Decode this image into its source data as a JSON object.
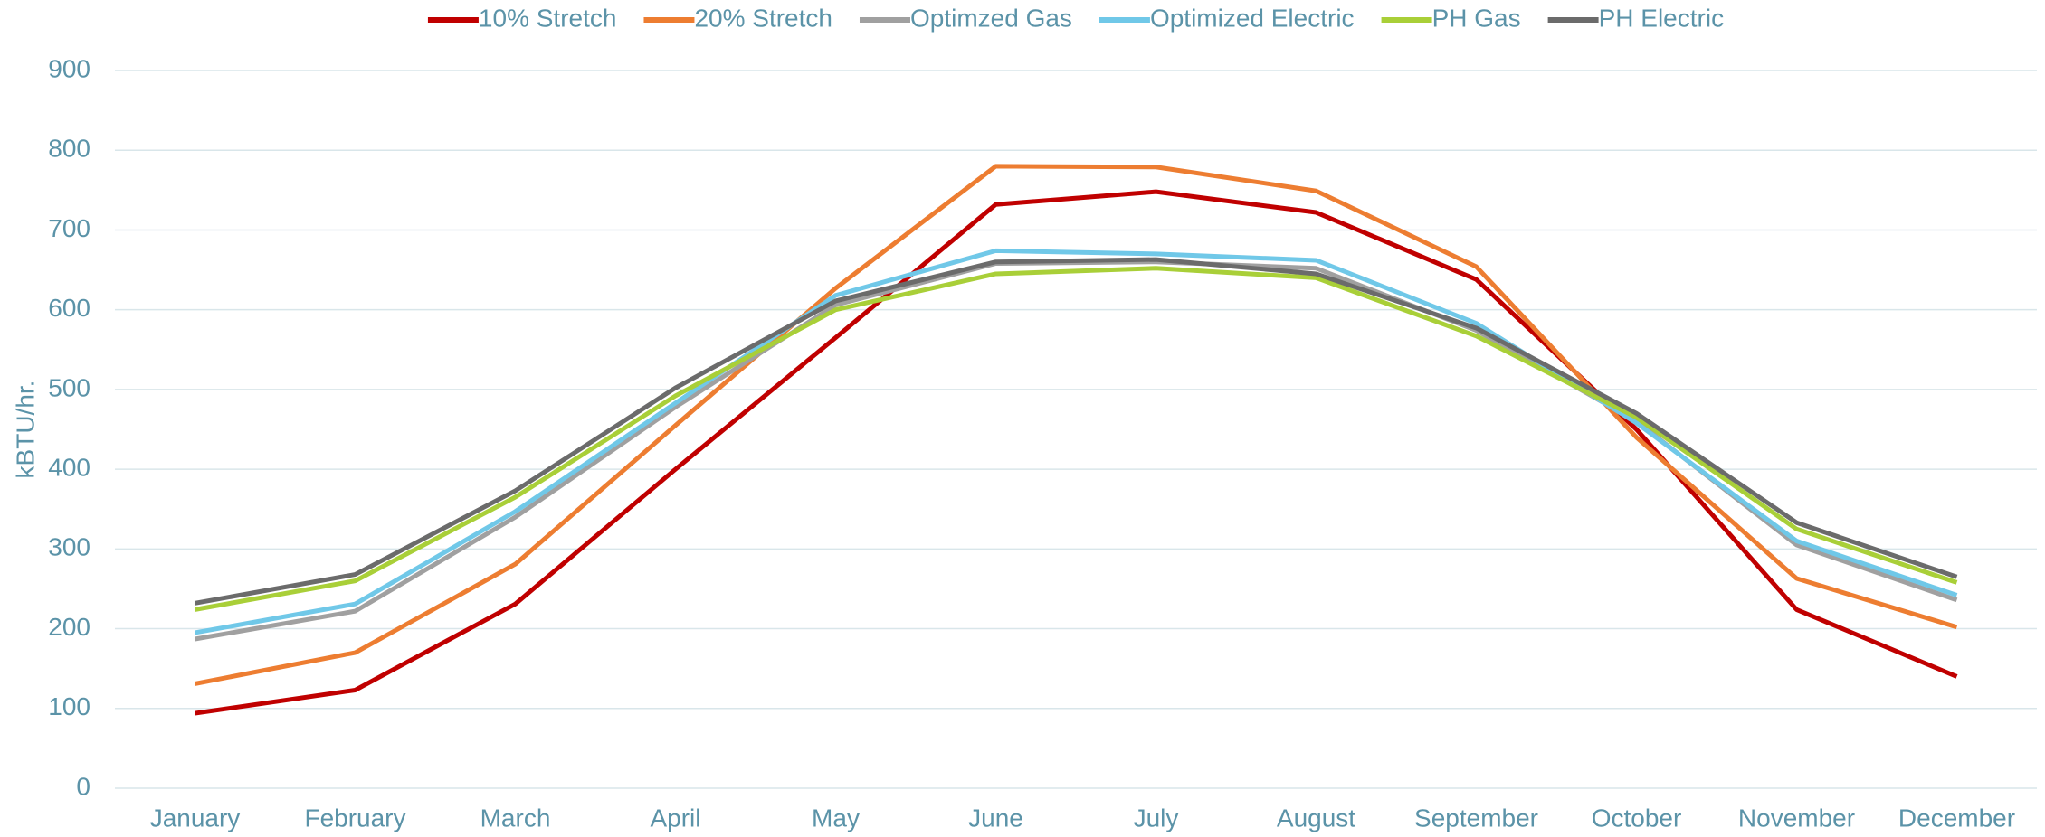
{
  "chart_data": {
    "type": "line",
    "y_label": "kBTU/hr.",
    "categories": [
      "January",
      "February",
      "March",
      "April",
      "May",
      "June",
      "July",
      "August",
      "September",
      "October",
      "November",
      "December"
    ],
    "series": [
      {
        "name": "10% Stretch",
        "color": "#c00000",
        "values": [
          94,
          123,
          231,
          400,
          565,
          732,
          748,
          722,
          638,
          450,
          224,
          140
        ]
      },
      {
        "name": "20% Stretch",
        "color": "#ed7d31",
        "values": [
          131,
          170,
          281,
          455,
          627,
          780,
          779,
          749,
          654,
          440,
          263,
          202
        ]
      },
      {
        "name": "Optimzed Gas",
        "color": "#a0a0a0",
        "values": [
          187,
          222,
          340,
          478,
          606,
          658,
          660,
          652,
          574,
          460,
          305,
          236
        ]
      },
      {
        "name": "Optimized Electric",
        "color": "#70c8e8",
        "values": [
          195,
          231,
          347,
          483,
          618,
          674,
          670,
          662,
          583,
          458,
          310,
          242
        ]
      },
      {
        "name": "PH Gas",
        "color": "#a9cf38",
        "values": [
          224,
          260,
          365,
          492,
          600,
          645,
          652,
          640,
          567,
          465,
          325,
          258
        ]
      },
      {
        "name": "PH Electric",
        "color": "#6b6b6b",
        "values": [
          232,
          268,
          373,
          502,
          611,
          660,
          663,
          645,
          577,
          470,
          333,
          265
        ]
      }
    ],
    "ylim": [
      0,
      900
    ],
    "yticks": [
      0,
      100,
      200,
      300,
      400,
      500,
      600,
      700,
      800,
      900
    ],
    "grid": true,
    "legend": "top"
  }
}
